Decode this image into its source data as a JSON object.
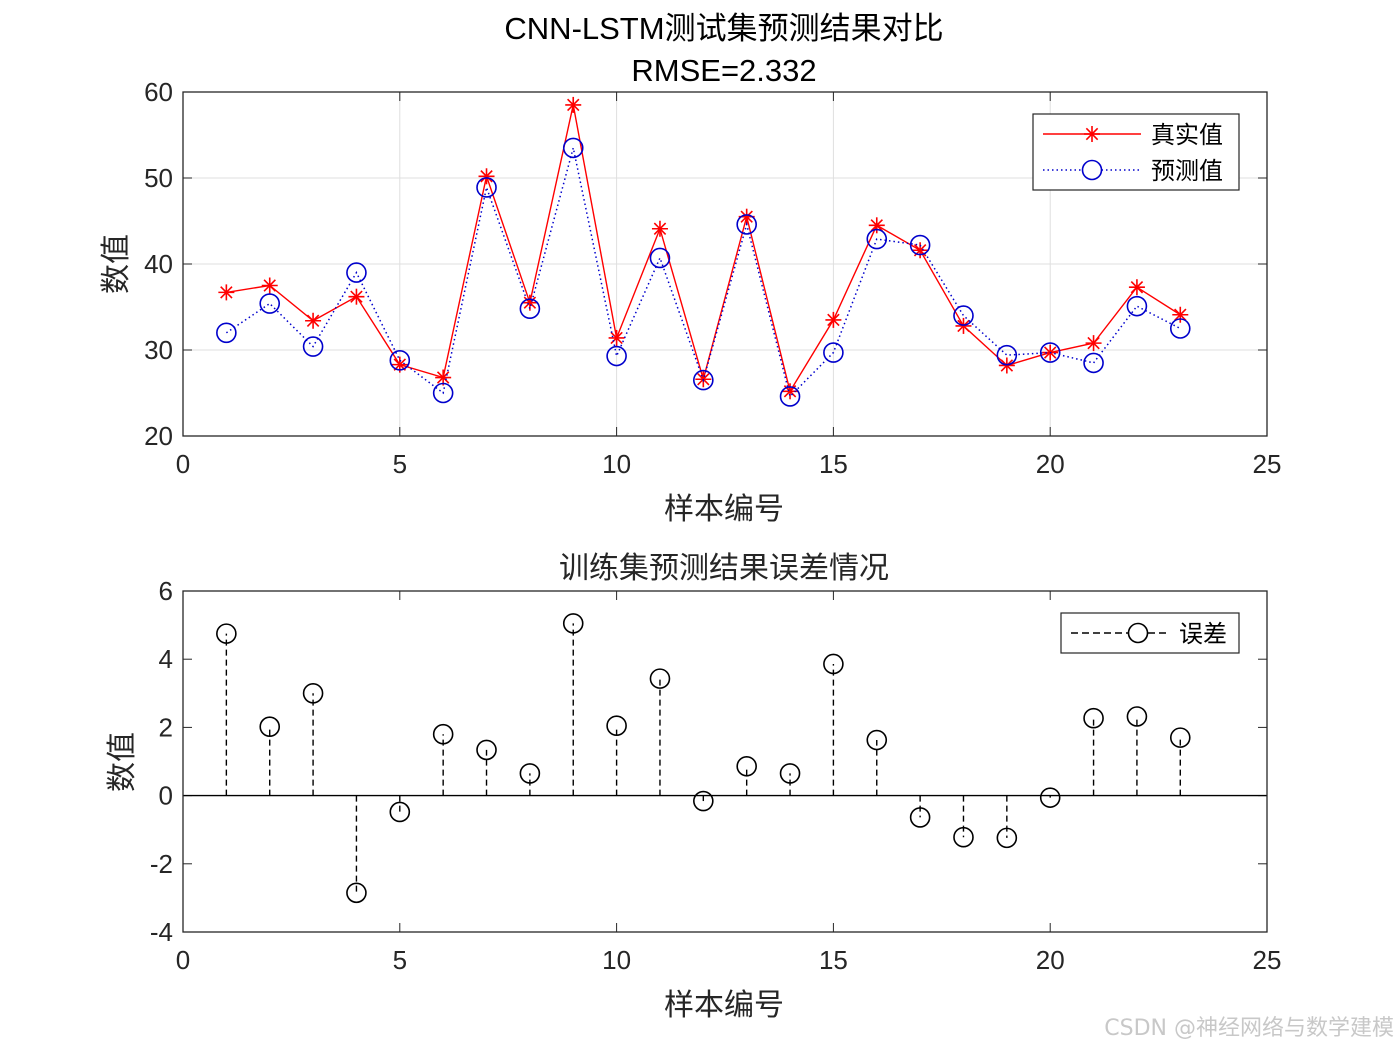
{
  "watermark": "CSDN @神经网络与数学建模",
  "chart_data": [
    {
      "type": "line",
      "title": "CNN-LSTM测试集预测结果对比",
      "subtitle": "RMSE=2.332",
      "xlabel": "样本编号",
      "ylabel": "数值",
      "xlim": [
        0,
        25
      ],
      "ylim": [
        20,
        60
      ],
      "xticks": [
        0,
        5,
        10,
        15,
        20,
        25
      ],
      "yticks": [
        20,
        30,
        40,
        50,
        60
      ],
      "grid": true,
      "legend_position": "top-right",
      "x": [
        1,
        2,
        3,
        4,
        5,
        6,
        7,
        8,
        9,
        10,
        11,
        12,
        13,
        14,
        15,
        16,
        17,
        18,
        19,
        20,
        21,
        22,
        23
      ],
      "series": [
        {
          "name": "真实值",
          "color": "#ff0000",
          "marker": "asterisk",
          "line": "solid",
          "values": [
            36.7,
            37.5,
            33.4,
            36.2,
            28.3,
            26.8,
            50.2,
            35.5,
            58.5,
            31.4,
            44.1,
            26.6,
            45.5,
            25.2,
            33.5,
            44.5,
            41.6,
            32.8,
            28.2,
            29.7,
            30.8,
            37.3,
            34.1
          ]
        },
        {
          "name": "预测值",
          "color": "#0000cc",
          "marker": "circle",
          "line": "dotted",
          "values": [
            32.0,
            35.4,
            30.4,
            39.0,
            28.8,
            25.0,
            48.9,
            34.8,
            53.5,
            29.3,
            40.7,
            26.5,
            44.6,
            24.6,
            29.7,
            42.9,
            42.2,
            34.0,
            29.4,
            29.7,
            28.5,
            35.1,
            32.5
          ]
        }
      ]
    },
    {
      "type": "stem",
      "title": "训练集预测结果误差情况",
      "xlabel": "样本编号",
      "ylabel": "数值",
      "xlim": [
        0,
        25
      ],
      "ylim": [
        -4,
        6
      ],
      "xticks": [
        0,
        5,
        10,
        15,
        20,
        25
      ],
      "yticks": [
        -4,
        -2,
        0,
        2,
        4,
        6
      ],
      "grid": false,
      "legend_position": "top-right",
      "x": [
        1,
        2,
        3,
        4,
        5,
        6,
        7,
        8,
        9,
        10,
        11,
        12,
        13,
        14,
        15,
        16,
        17,
        18,
        19,
        20,
        21,
        22,
        23
      ],
      "series": [
        {
          "name": "误差",
          "color": "#000000",
          "marker": "circle",
          "line": "dashed",
          "values": [
            4.75,
            2.02,
            3.0,
            -2.85,
            -0.48,
            1.8,
            1.34,
            0.65,
            5.05,
            2.05,
            3.43,
            -0.16,
            0.86,
            0.65,
            3.86,
            1.63,
            -0.64,
            -1.22,
            -1.24,
            -0.06,
            2.27,
            2.32,
            1.7
          ]
        }
      ]
    }
  ]
}
